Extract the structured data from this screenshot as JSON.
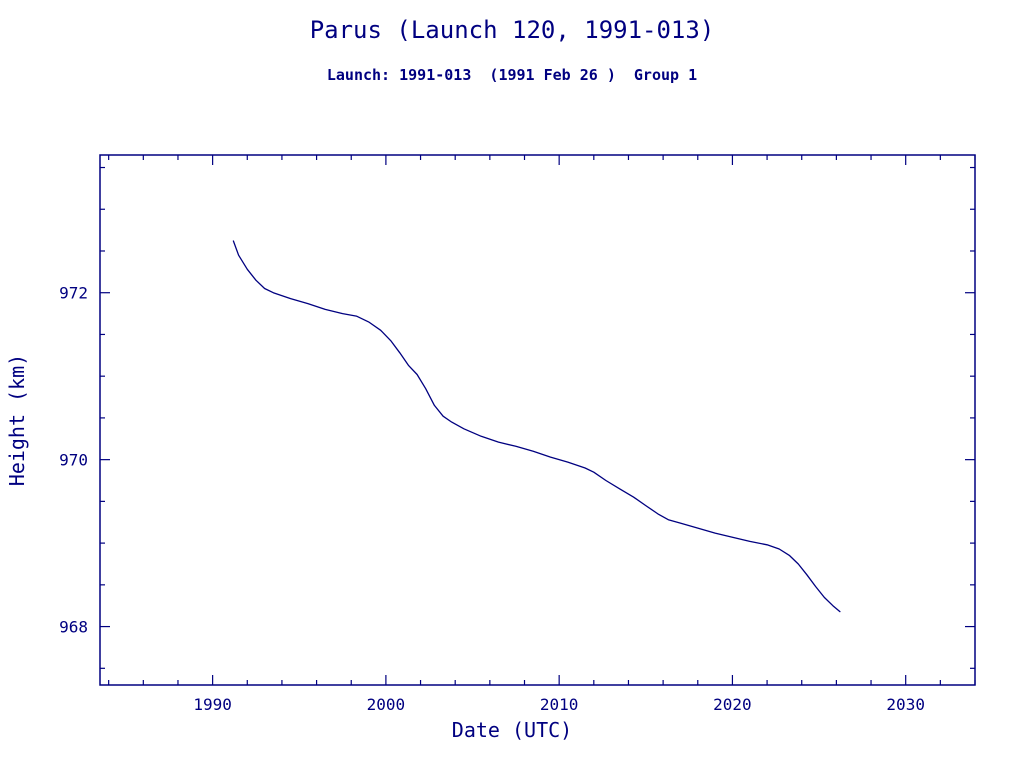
{
  "page": {
    "background": "#ffffff",
    "accent": "#000080"
  },
  "header": {
    "title": "Parus (Launch 120, 1991-013)",
    "subtitle": "Launch: 1991-013  (1991 Feb 26 )  Group 1"
  },
  "chart_data": {
    "type": "line",
    "title": "Parus (Launch 120, 1991-013)",
    "subtitle": "Launch: 1991-013  (1991 Feb 26 )  Group 1",
    "xlabel": "Date (UTC)",
    "ylabel": "Height (km)",
    "xlim": [
      1983.5,
      2034.0
    ],
    "ylim": [
      967.3,
      973.65
    ],
    "x_ticks": [
      1990,
      2000,
      2010,
      2020,
      2030
    ],
    "y_ticks": [
      968,
      970,
      972
    ],
    "x_minor_step": 2,
    "y_minor_step": 0.5,
    "grid": false,
    "legend": "none",
    "line_color": "#000080",
    "series": [
      {
        "name": "height",
        "x": [
          1991.2,
          1991.5,
          1992.0,
          1992.5,
          1993.0,
          1993.5,
          1994.5,
          1995.5,
          1996.5,
          1997.5,
          1998.3,
          1999.0,
          1999.7,
          2000.3,
          2000.8,
          2001.3,
          2001.8,
          2002.3,
          2002.8,
          2003.3,
          2003.8,
          2004.5,
          2005.5,
          2006.5,
          2007.5,
          2008.5,
          2009.5,
          2010.5,
          2011.5,
          2012.0,
          2012.7,
          2013.5,
          2014.3,
          2015.0,
          2015.7,
          2016.3,
          2017.0,
          2018.0,
          2019.0,
          2020.0,
          2021.0,
          2022.0,
          2022.7,
          2023.3,
          2023.8,
          2024.3,
          2024.8,
          2025.3,
          2025.8,
          2026.2
        ],
        "y": [
          972.62,
          972.45,
          972.28,
          972.15,
          972.05,
          972.0,
          971.93,
          971.87,
          971.8,
          971.75,
          971.72,
          971.65,
          971.55,
          971.42,
          971.28,
          971.13,
          971.02,
          970.85,
          970.65,
          970.52,
          970.45,
          970.37,
          970.28,
          970.21,
          970.16,
          970.1,
          970.03,
          969.97,
          969.9,
          969.85,
          969.75,
          969.65,
          969.55,
          969.45,
          969.35,
          969.28,
          969.24,
          969.18,
          969.12,
          969.07,
          969.02,
          968.98,
          968.93,
          968.85,
          968.75,
          968.62,
          968.48,
          968.35,
          968.25,
          968.18
        ]
      }
    ]
  }
}
